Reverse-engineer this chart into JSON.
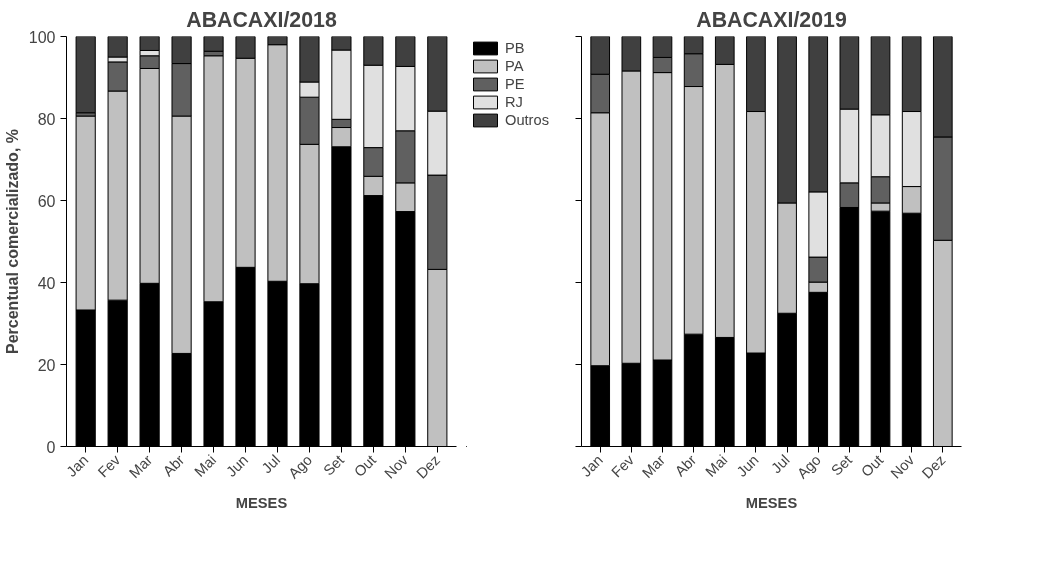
{
  "chart_data": [
    {
      "type": "bar",
      "stacked": true,
      "title": "ABACAXI/2018",
      "xlabel": "MESES",
      "ylabel": "Percentual comercializado, %",
      "categories": [
        "Jan",
        "Fev",
        "Mar",
        "Abr",
        "Mai",
        "Jun",
        "Jul",
        "Ago",
        "Set",
        "Out",
        "Nov",
        "Dez"
      ],
      "ylim": [
        0,
        100
      ],
      "yticks": [
        0,
        20,
        40,
        60,
        80,
        100
      ],
      "grid": false,
      "legend": "right",
      "series": [
        {
          "name": "PB",
          "color": "#000000",
          "values": [
            33.3,
            35.7,
            39.8,
            22.7,
            35.3,
            43.7,
            40.3,
            39.7,
            73.1,
            61.2,
            57.3,
            0
          ]
        },
        {
          "name": "PA",
          "color": "#c0c0c0",
          "values": [
            47.3,
            51.0,
            52.4,
            57.9,
            60.0,
            51.0,
            57.7,
            34.0,
            4.7,
            4.7,
            7.0,
            43.2
          ]
        },
        {
          "name": "PE",
          "color": "#606060",
          "values": [
            0.8,
            7.1,
            3.1,
            12.8,
            1.1,
            0,
            0,
            11.5,
            2.0,
            7.0,
            12.7,
            23.0
          ]
        },
        {
          "name": "RJ",
          "color": "#e0e0e0",
          "values": [
            null,
            1.2,
            1.3,
            0,
            null,
            0,
            0,
            3.7,
            16.9,
            20.1,
            15.7,
            15.6
          ]
        },
        {
          "name": "Outros",
          "color": "#404040",
          "values": [
            18.6,
            5.0,
            3.4,
            6.6,
            3.6,
            5.3,
            2.0,
            11.1,
            3.3,
            7.0,
            7.3,
            18.2
          ]
        }
      ]
    },
    {
      "type": "bar",
      "stacked": true,
      "title": "ABACAXI/2019",
      "xlabel": "MESES",
      "tick_labels": "x",
      "categories": [
        "Jan",
        "Fev",
        "Mar",
        "Abr",
        "Mai",
        "Jun",
        "Jul",
        "Ago",
        "Set",
        "Out",
        "Nov",
        "Dez"
      ],
      "ylim": [
        0,
        100
      ],
      "yticks": [
        0,
        20,
        40,
        60,
        80,
        100
      ],
      "grid": false,
      "legend": false,
      "series": [
        {
          "color": "#000000",
          "values": [
            19.7,
            20.3,
            21.1,
            27.4,
            26.6,
            22.8,
            32.5,
            37.6,
            58.3,
            57.4,
            56.9,
            0
          ]
        },
        {
          "color": "#c0c0c0",
          "values": [
            61.7,
            71.3,
            70.1,
            60.4,
            66.6,
            58.9,
            26.9,
            2.5,
            0,
            2.0,
            6.5,
            50.3
          ]
        },
        {
          "color": "#606060",
          "values": [
            9.4,
            0,
            3.7,
            8.0,
            0,
            0,
            0,
            6.1,
            6.0,
            6.4,
            0,
            25.2
          ]
        },
        {
          "color": "#e0e0e0",
          "values": [
            0,
            0,
            0,
            0,
            0,
            0,
            0,
            15.9,
            18.0,
            15.1,
            18.3,
            0
          ]
        },
        {
          "color": "#404040",
          "values": [
            9.2,
            8.4,
            5.1,
            4.2,
            6.8,
            18.3,
            40.6,
            37.9,
            17.7,
            19.1,
            18.3,
            24.5
          ]
        }
      ]
    }
  ]
}
